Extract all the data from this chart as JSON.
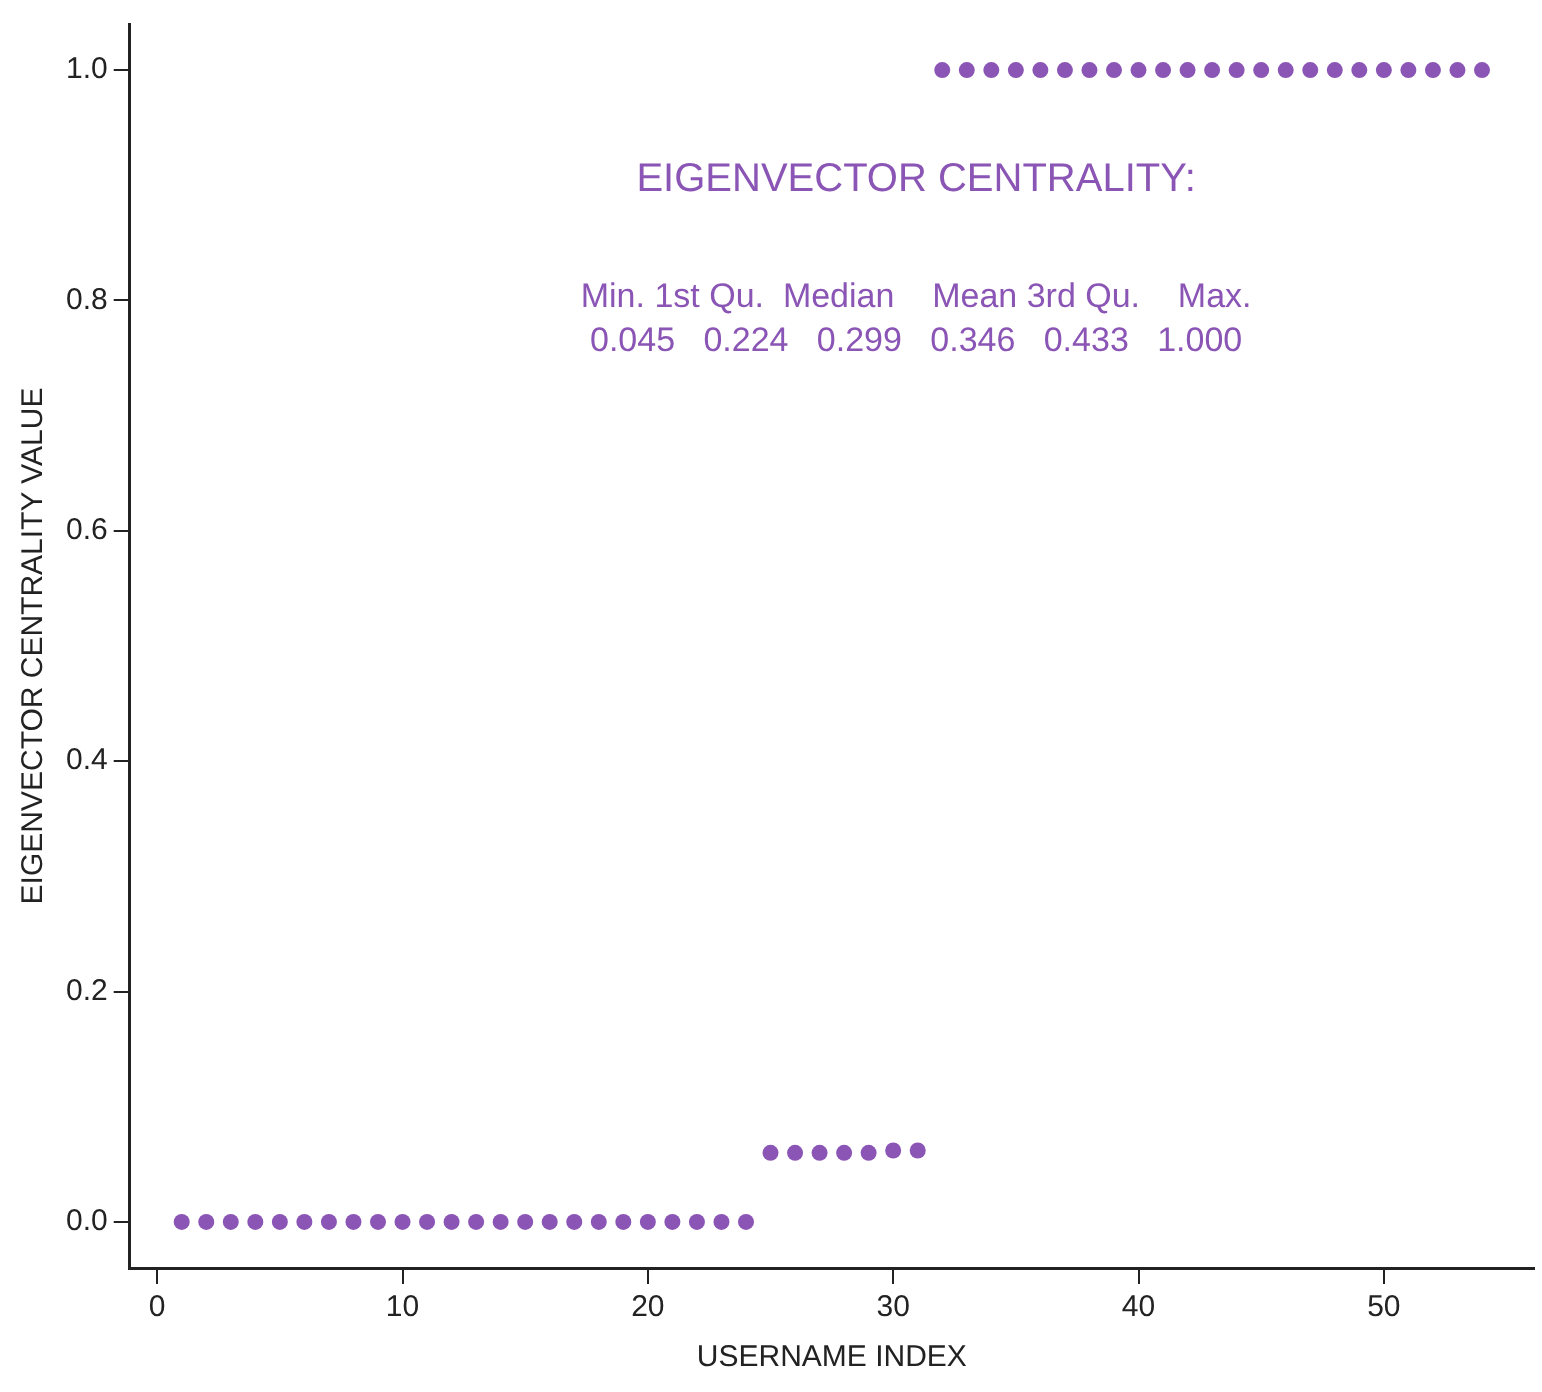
{
  "chart_data": {
    "type": "scatter",
    "xlabel": "USERNAME INDEX",
    "ylabel": "EIGENVECTOR CENTRALITY VALUE",
    "annotations": [
      "EIGENVECTOR CENTRALITY:",
      "Min. 1st Qu.  Median    Mean 3rd Qu.    Max.",
      "0.045   0.224   0.299   0.346   0.433   1.000"
    ],
    "series": [
      {
        "color": "#8a55b5",
        "x": [
          1,
          2,
          3,
          4,
          5,
          6,
          7,
          8,
          9,
          10,
          11,
          12,
          13,
          14,
          15,
          16,
          17,
          18,
          19,
          20,
          21,
          22,
          23,
          24,
          25,
          26,
          27,
          28,
          29,
          30,
          31,
          32,
          33,
          34,
          35,
          36,
          37,
          38,
          39,
          40,
          41,
          42,
          43,
          44,
          45,
          46,
          47,
          48,
          49,
          50,
          51,
          52,
          53,
          54
        ],
        "values": [
          0,
          0,
          0,
          0,
          0,
          0,
          0,
          0,
          0,
          0,
          0,
          0,
          0,
          0,
          0,
          0,
          0,
          0,
          0,
          0,
          0,
          0,
          0,
          0,
          0.06,
          0.06,
          0.06,
          0.06,
          0.06,
          0.062,
          0.062,
          1,
          1,
          1,
          1,
          1,
          1,
          1,
          1,
          1,
          1,
          1,
          1,
          1,
          1,
          1,
          1,
          1,
          1,
          1,
          1,
          1,
          1,
          1
        ]
      }
    ],
    "marker": "circle",
    "grid": false,
    "legend": false,
    "xlim": [
      -1.12,
      56.12
    ],
    "xticks": [
      0,
      10,
      20,
      30,
      40,
      50
    ],
    "ylim": [
      -0.04,
      1.04
    ],
    "yticks": [
      {
        "value": 0,
        "label": "0.0"
      },
      {
        "value": 0.2,
        "label": "0.2"
      },
      {
        "value": 0.4,
        "label": "0.4"
      },
      {
        "value": 0.6,
        "label": "0.6"
      },
      {
        "value": 0.8,
        "label": "0.8"
      },
      {
        "value": 1,
        "label": "1.0"
      }
    ]
  }
}
